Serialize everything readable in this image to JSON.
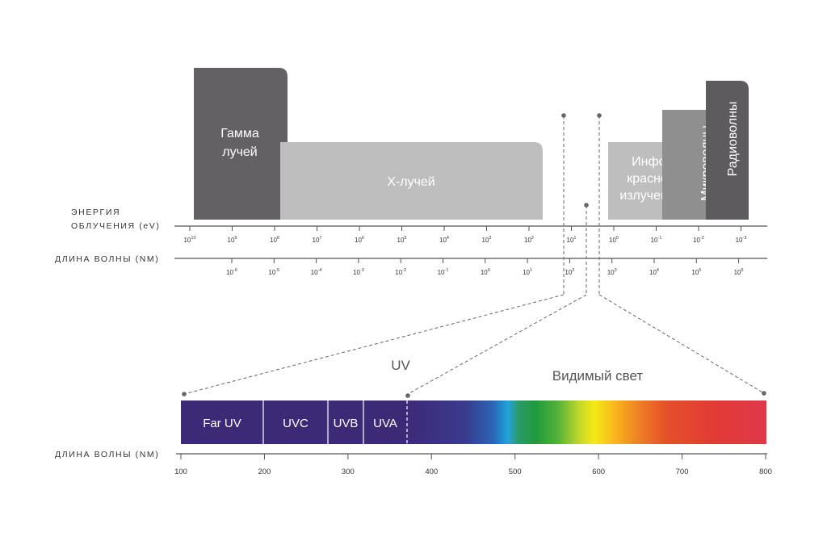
{
  "bands": {
    "gamma": {
      "line1": "Гамма",
      "line2": "лучей",
      "color": "#636163"
    },
    "xray": {
      "label": "X-лучей",
      "color": "#bebebe"
    },
    "infrared": {
      "line1": "Инфо-",
      "line2": "красное",
      "line3": "излучение",
      "color": "#bebebe"
    },
    "microwave": {
      "label": "Микроволны",
      "color": "#8f8f8f"
    },
    "radio": {
      "label": "Радиоволны",
      "color": "#5d5b5d"
    }
  },
  "energy_axis": {
    "title_line1": "ЭНЕРГИЯ",
    "title_line2": "ОБЛУЧЕНИЯ (eV)",
    "ticks": [
      {
        "base": "10",
        "exp": "10"
      },
      {
        "base": "10",
        "exp": "9"
      },
      {
        "base": "10",
        "exp": "8"
      },
      {
        "base": "10",
        "exp": "7"
      },
      {
        "base": "10",
        "exp": "6"
      },
      {
        "base": "10",
        "exp": "5"
      },
      {
        "base": "10",
        "exp": "4"
      },
      {
        "base": "10",
        "exp": "3"
      },
      {
        "base": "10",
        "exp": "2"
      },
      {
        "base": "10",
        "exp": "1"
      },
      {
        "base": "10",
        "exp": "0"
      },
      {
        "base": "10",
        "exp": "-1"
      },
      {
        "base": "10",
        "exp": "-2"
      },
      {
        "base": "10",
        "exp": "-3"
      }
    ]
  },
  "wavelength_axis": {
    "title": "ДЛИНА ВОЛНЫ (NM)",
    "ticks": [
      {
        "base": "10",
        "exp": "-6"
      },
      {
        "base": "10",
        "exp": "-5"
      },
      {
        "base": "10",
        "exp": "-4"
      },
      {
        "base": "10",
        "exp": "-3"
      },
      {
        "base": "10",
        "exp": "-2"
      },
      {
        "base": "10",
        "exp": "-1"
      },
      {
        "base": "10",
        "exp": "0"
      },
      {
        "base": "10",
        "exp": "1"
      },
      {
        "base": "10",
        "exp": "2"
      },
      {
        "base": "10",
        "exp": "3"
      },
      {
        "base": "10",
        "exp": "4"
      },
      {
        "base": "10",
        "exp": "5"
      },
      {
        "base": "10",
        "exp": "6"
      }
    ]
  },
  "uv_bands": {
    "far_uv": "Far UV",
    "uvc": "UVC",
    "uvb": "UVB",
    "uva": "UVA",
    "color": "#3d2a76"
  },
  "region_labels": {
    "uv": "UV",
    "visible": "Видимый свет"
  },
  "bottom_axis": {
    "title": "ДЛИНА ВОЛНЫ (NM)",
    "ticks": [
      "100",
      "200",
      "300",
      "400",
      "500",
      "600",
      "700",
      "800"
    ]
  }
}
